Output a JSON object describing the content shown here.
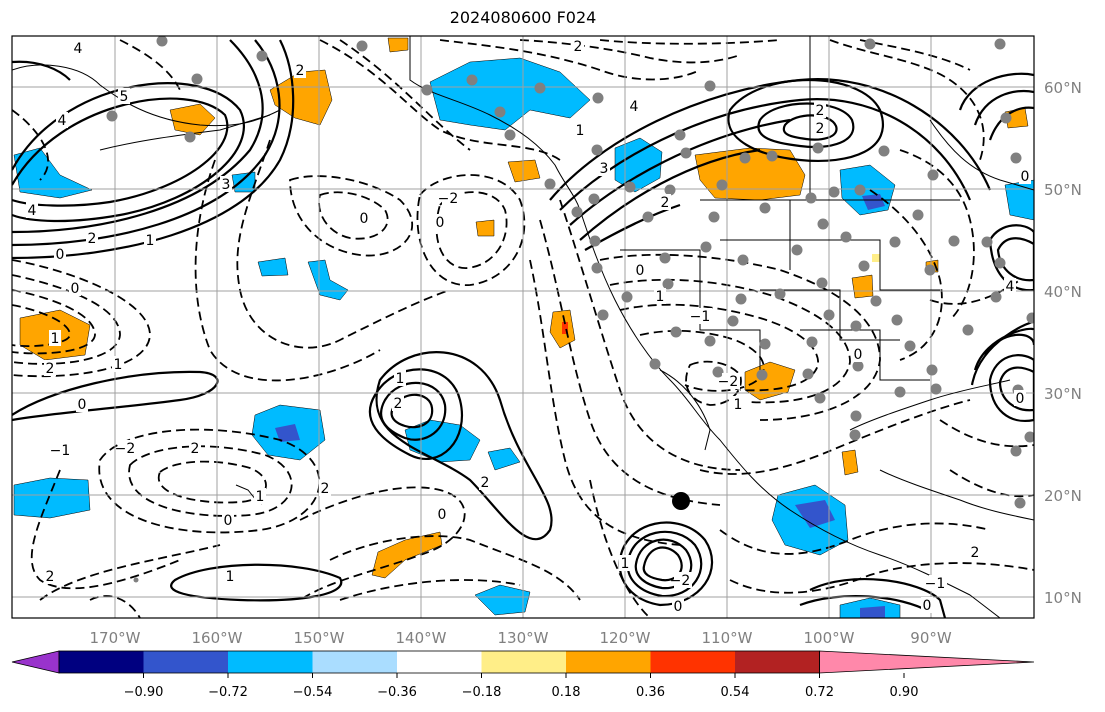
{
  "title": "2024080600 F024",
  "longitude_labels": [
    "170°W",
    "160°W",
    "150°W",
    "140°W",
    "130°W",
    "120°W",
    "110°W",
    "100°W",
    "90°W"
  ],
  "latitude_labels": [
    "60°N",
    "50°N",
    "40°N",
    "30°N",
    "20°N",
    "10°N"
  ],
  "colorbar": {
    "colors": [
      "#9933cc",
      "#000080",
      "#3355cc",
      "#00bbff",
      "#aaddff",
      "#ffffff",
      "#ffee88",
      "#ffa500",
      "#ff3300",
      "#b22222",
      "#ff88aa"
    ],
    "ticks": [
      "−0.90",
      "−0.72",
      "−0.54",
      "−0.36",
      "−0.18",
      "0.18",
      "0.36",
      "0.54",
      "0.72",
      "0.90"
    ]
  },
  "contour_labels": [
    "4",
    "5",
    "4",
    "3",
    "4",
    "2",
    "1",
    "0",
    "2",
    "0",
    "1",
    "2",
    "1",
    "0",
    "−1",
    "−2",
    "2",
    "0",
    "2",
    "1",
    "1",
    "2",
    "1",
    "2",
    "0",
    "2",
    "0",
    "−2",
    "0",
    "2",
    "3",
    "4",
    "1",
    "2",
    "2",
    "2",
    "0",
    "1",
    "−1",
    "−2",
    "1",
    "0",
    "0",
    "1",
    "−2",
    "−1",
    "0",
    "2",
    "4",
    "0",
    "0"
  ],
  "marker_colors": {
    "stations": "#808080",
    "point": "#000000",
    "land": "#000000",
    "grid": "#a0a0a0"
  }
}
